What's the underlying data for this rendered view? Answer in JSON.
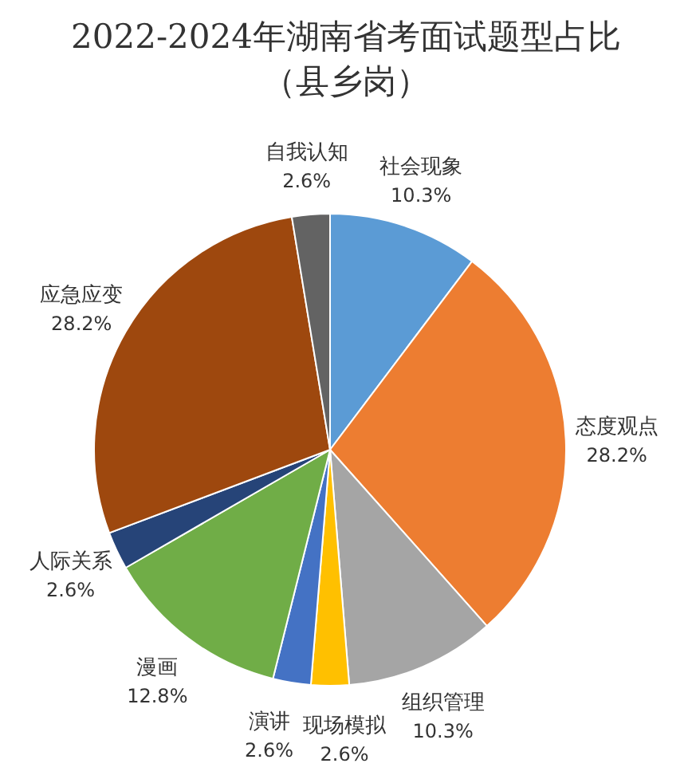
{
  "chart_data": {
    "type": "pie",
    "title": "2022-2024年湖南省考面试题型占比",
    "subtitle": "（县乡岗）",
    "categories": [
      "社会现象",
      "态度观点",
      "组织管理",
      "现场模拟",
      "演讲",
      "漫画",
      "人际关系",
      "应急应变",
      "自我认知"
    ],
    "values": [
      10.3,
      28.2,
      10.3,
      2.6,
      2.6,
      12.8,
      2.6,
      28.2,
      2.6
    ],
    "colors": [
      "#5b9bd5",
      "#ed7d31",
      "#a5a5a5",
      "#ffc000",
      "#4472c4",
      "#70ad47",
      "#264478",
      "#9e480e",
      "#636363"
    ],
    "value_labels": [
      "10.3%",
      "28.2%",
      "10.3%",
      "2.6%",
      "2.6%",
      "12.8%",
      "2.6%",
      "28.2%",
      "2.6%"
    ],
    "legend": false
  }
}
